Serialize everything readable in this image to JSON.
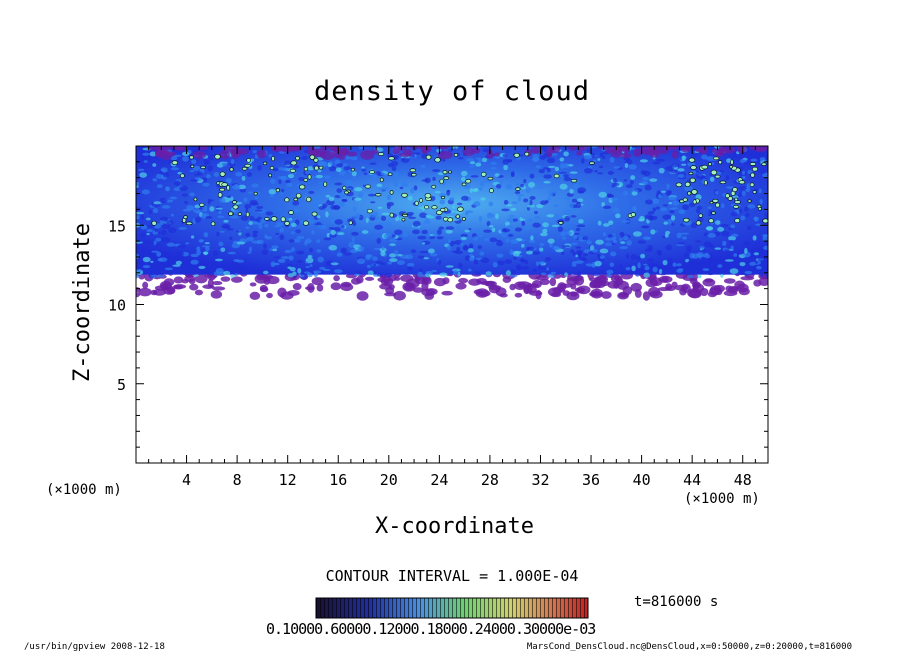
{
  "chart_data": {
    "type": "heatmap",
    "title": "density of cloud",
    "xlabel": "X-coordinate",
    "ylabel": "Z-coordinate",
    "x_unit_left": "(×1000 m)",
    "x_unit_right": "(×1000 m)",
    "xlim": [
      0,
      50
    ],
    "ylim": [
      0,
      20
    ],
    "x_ticks": [
      4,
      8,
      12,
      16,
      20,
      24,
      28,
      32,
      36,
      40,
      44,
      48
    ],
    "y_ticks": [
      5,
      10,
      15
    ],
    "cloud_base_km": 11,
    "cloud_top_km": 20,
    "contour_interval": "CONTOUR INTERVAL = 1.000E-04",
    "time_label": "t=816000 s",
    "colorbar_label": "0.10000.60000.12000.18000.24000.30000e-03",
    "colors": {
      "edge": "#6a1fa8",
      "base": "#1f2fd8",
      "mid": "#2f7df0",
      "high": "#4fd0e8",
      "peak": "#a0f0c0"
    }
  },
  "footer": {
    "left": "/usr/bin/gpview   2008-12-18",
    "right": "MarsCond_DensCloud.nc@DensCloud,x=0:50000,z=0:20000,t=816000"
  }
}
